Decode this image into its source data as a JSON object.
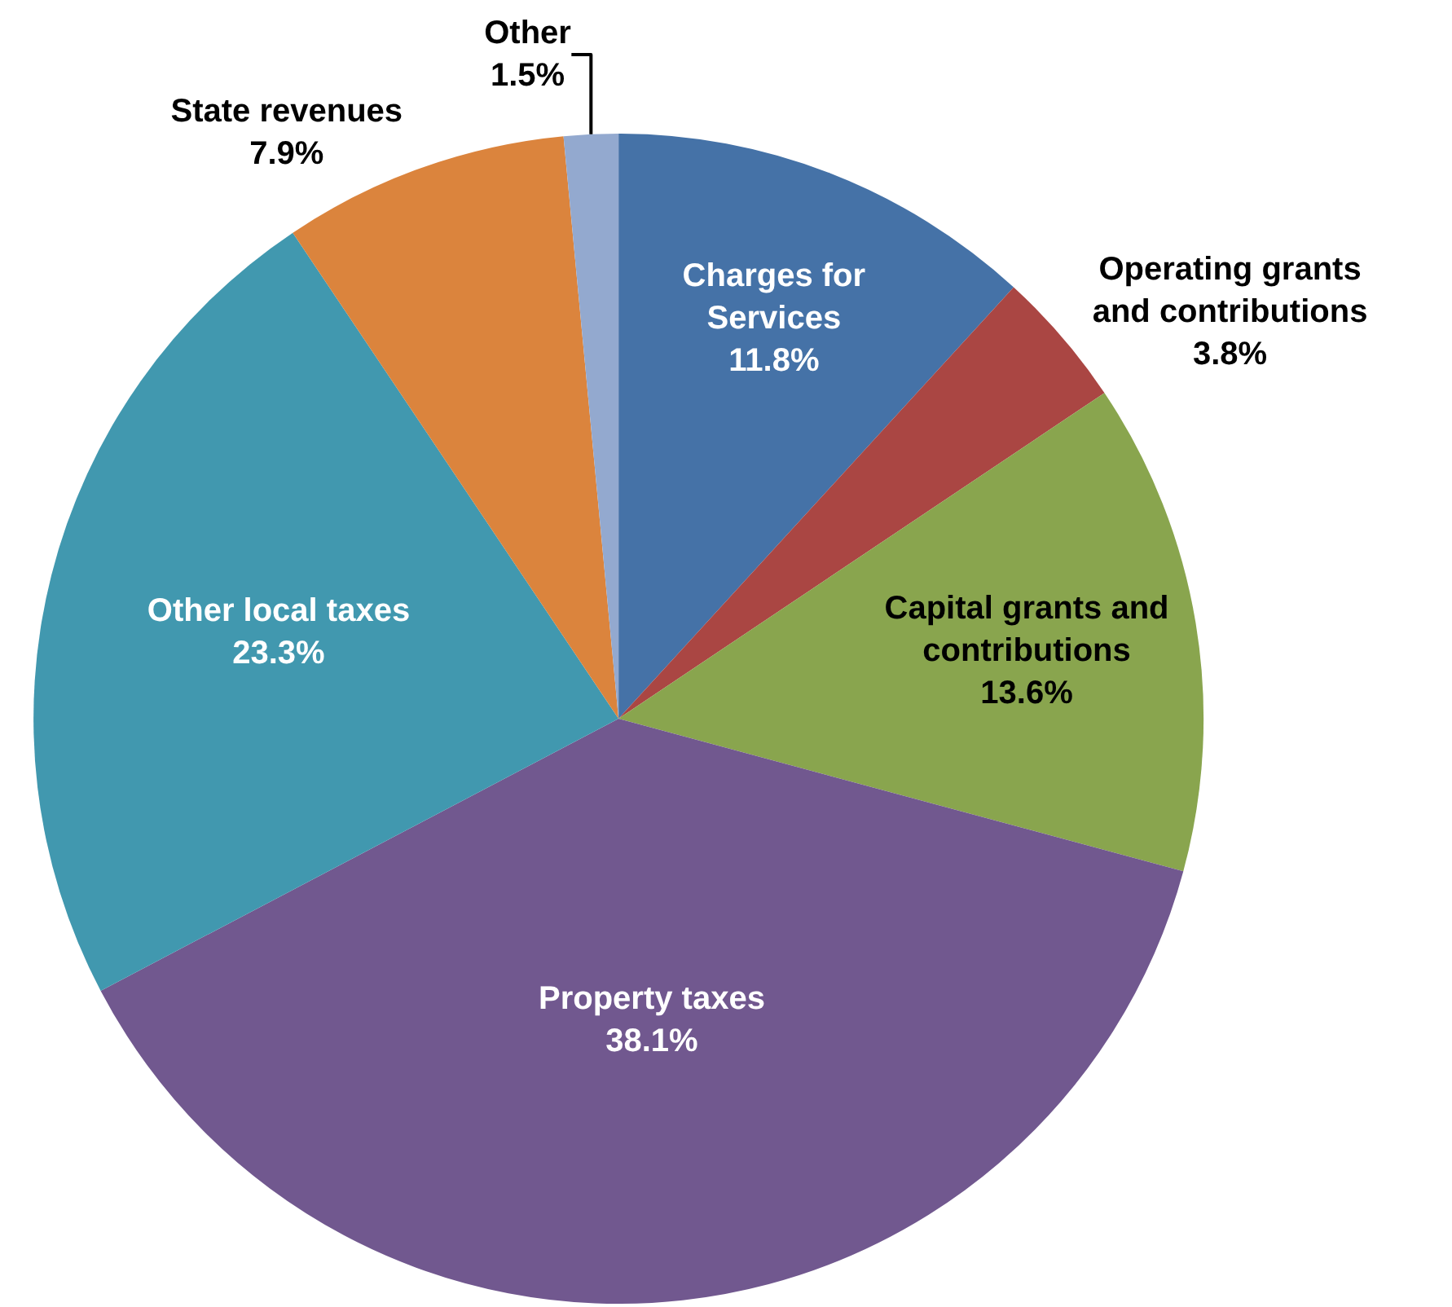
{
  "chart_data": {
    "type": "pie",
    "categories": [
      "Charges for Services",
      "Operating grants and contributions",
      "Capital grants and contributions",
      "Property taxes",
      "Other local taxes",
      "State revenues",
      "Other"
    ],
    "values": [
      11.8,
      3.8,
      13.6,
      38.1,
      23.3,
      7.9,
      1.5
    ],
    "colors": [
      "#4572a7",
      "#aa4643",
      "#89a54e",
      "#71588f",
      "#4198af",
      "#db843d",
      "#93a9cf"
    ],
    "value_labels": [
      "11.8%",
      "3.8%",
      "13.6%",
      "38.1%",
      "23.3%",
      "7.9%",
      "1.5%"
    ],
    "legend": false
  }
}
